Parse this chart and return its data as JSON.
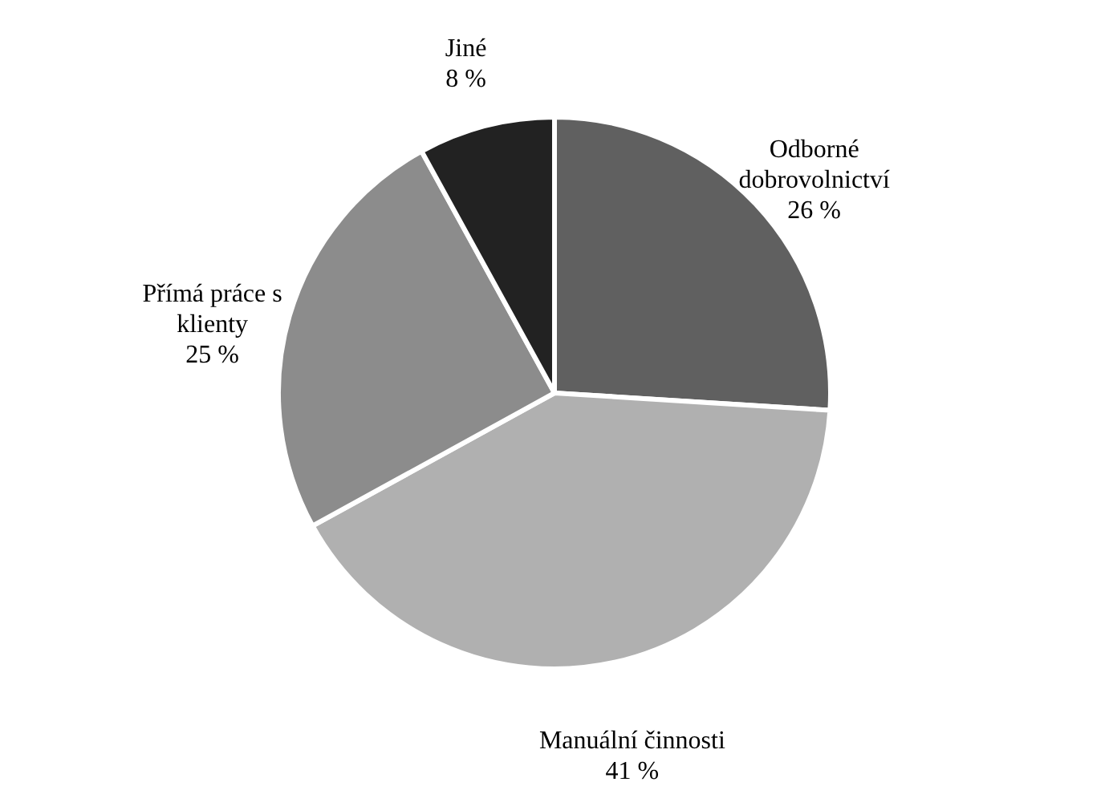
{
  "chart_data": {
    "type": "pie",
    "categories": [
      "Odborné dobrovolnictví",
      "Manuální činnosti",
      "Přímá práce s klienty",
      "Jiné"
    ],
    "values": [
      26,
      41,
      25,
      8
    ],
    "colors": [
      "#606060",
      "#b0b0b0",
      "#8c8c8c",
      "#222222"
    ],
    "value_labels": [
      "26 %",
      "41 %",
      "25 %",
      "8 %"
    ]
  }
}
